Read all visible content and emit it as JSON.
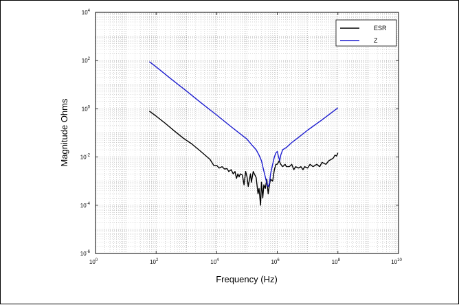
{
  "chart_data": {
    "type": "line",
    "xscale": "log",
    "yscale": "log",
    "xlim": [
      1,
      10000000000
    ],
    "ylim": [
      1e-06,
      10000
    ],
    "xlabel": "Frequency (Hz)",
    "ylabel": "Magnitude Ohms",
    "grid": true,
    "legend_position": "top-right",
    "x_ticks": [
      {
        "base": "10",
        "exp": "0",
        "value": 1
      },
      {
        "base": "10",
        "exp": "2",
        "value": 100
      },
      {
        "base": "10",
        "exp": "4",
        "value": 10000
      },
      {
        "base": "10",
        "exp": "6",
        "value": 1000000
      },
      {
        "base": "10",
        "exp": "8",
        "value": 100000000
      },
      {
        "base": "10",
        "exp": "10",
        "value": 10000000000
      }
    ],
    "y_ticks": [
      {
        "base": "10",
        "exp": "-6",
        "value": 1e-06
      },
      {
        "base": "10",
        "exp": "-4",
        "value": 0.0001
      },
      {
        "base": "10",
        "exp": "-2",
        "value": 0.01
      },
      {
        "base": "10",
        "exp": "0",
        "value": 1
      },
      {
        "base": "10",
        "exp": "2",
        "value": 100
      },
      {
        "base": "10",
        "exp": "4",
        "value": 10000
      }
    ],
    "series": [
      {
        "name": "ESR",
        "color": "#000000",
        "points": [
          [
            60,
            0.8
          ],
          [
            100,
            0.5
          ],
          [
            200,
            0.25
          ],
          [
            400,
            0.12
          ],
          [
            800,
            0.06
          ],
          [
            1500,
            0.035
          ],
          [
            3000,
            0.017
          ],
          [
            6000,
            0.008
          ],
          [
            8000,
            0.0045
          ],
          [
            10000,
            0.0045
          ],
          [
            12000,
            0.0035
          ],
          [
            15000,
            0.004
          ],
          [
            18000,
            0.0032
          ],
          [
            22000,
            0.0033
          ],
          [
            25000,
            0.0025
          ],
          [
            30000,
            0.003
          ],
          [
            35000,
            0.002
          ],
          [
            40000,
            0.0025
          ],
          [
            45000,
            0.0013
          ],
          [
            50000,
            0.002
          ],
          [
            55000,
            0.0015
          ],
          [
            60000,
            0.002
          ],
          [
            70000,
            0.0018
          ],
          [
            80000,
            0.0007
          ],
          [
            90000,
            0.0025
          ],
          [
            100000,
            0.0015
          ],
          [
            110000,
            0.0006
          ],
          [
            130000,
            0.002
          ],
          [
            140000,
            0.0009
          ],
          [
            160000,
            0.0025
          ],
          [
            200000,
            0.0014
          ],
          [
            230000,
            0.0003
          ],
          [
            250000,
            0.0005
          ],
          [
            280000,
            0.0001
          ],
          [
            300000,
            0.0009
          ],
          [
            330000,
            0.0002
          ],
          [
            360000,
            0.0007
          ],
          [
            400000,
            0.0005
          ],
          [
            450000,
            0.0012
          ],
          [
            500000,
            0.0003
          ],
          [
            560000,
            0.0008
          ],
          [
            600000,
            0.0012
          ],
          [
            700000,
            0.001
          ],
          [
            800000,
            0.003
          ],
          [
            900000,
            0.005
          ],
          [
            1000000,
            0.005
          ],
          [
            1150000,
            0.007
          ],
          [
            1300000,
            0.005
          ],
          [
            1500000,
            0.004
          ],
          [
            1800000,
            0.005
          ],
          [
            2000000,
            0.004
          ],
          [
            2500000,
            0.004
          ],
          [
            3000000,
            0.005
          ],
          [
            3500000,
            0.003
          ],
          [
            4000000,
            0.004
          ],
          [
            5000000,
            0.0035
          ],
          [
            6000000,
            0.004
          ],
          [
            7000000,
            0.003
          ],
          [
            8000000,
            0.004
          ],
          [
            10000000,
            0.0035
          ],
          [
            12000000,
            0.005
          ],
          [
            15000000,
            0.004
          ],
          [
            20000000,
            0.005
          ],
          [
            25000000,
            0.004
          ],
          [
            30000000,
            0.006
          ],
          [
            40000000,
            0.005
          ],
          [
            50000000,
            0.007
          ],
          [
            60000000,
            0.008
          ],
          [
            70000000,
            0.009
          ],
          [
            80000000,
            0.012
          ],
          [
            90000000,
            0.011
          ],
          [
            100000000,
            0.015
          ]
        ]
      },
      {
        "name": "Z",
        "color": "#1c1ccf",
        "points": [
          [
            60,
            90
          ],
          [
            100,
            55
          ],
          [
            300,
            18
          ],
          [
            1000,
            5.5
          ],
          [
            3000,
            1.8
          ],
          [
            10000,
            0.55
          ],
          [
            30000,
            0.18
          ],
          [
            100000,
            0.055
          ],
          [
            150000,
            0.03
          ],
          [
            200000,
            0.02
          ],
          [
            250000,
            0.012
          ],
          [
            300000,
            0.007
          ],
          [
            350000,
            0.003
          ],
          [
            400000,
            0.0015
          ],
          [
            450000,
            0.0008
          ],
          [
            500000,
            0.0006
          ],
          [
            550000,
            0.0008
          ],
          [
            600000,
            0.002
          ],
          [
            700000,
            0.005
          ],
          [
            800000,
            0.01
          ],
          [
            900000,
            0.015
          ],
          [
            1000000,
            0.017
          ],
          [
            1100000,
            0.01
          ],
          [
            1200000,
            0.007
          ],
          [
            1300000,
            0.012
          ],
          [
            1500000,
            0.02
          ],
          [
            2000000,
            0.025
          ],
          [
            3000000,
            0.04
          ],
          [
            5000000,
            0.065
          ],
          [
            10000000,
            0.13
          ],
          [
            30000000,
            0.35
          ],
          [
            100000000,
            1.1
          ]
        ]
      }
    ]
  }
}
